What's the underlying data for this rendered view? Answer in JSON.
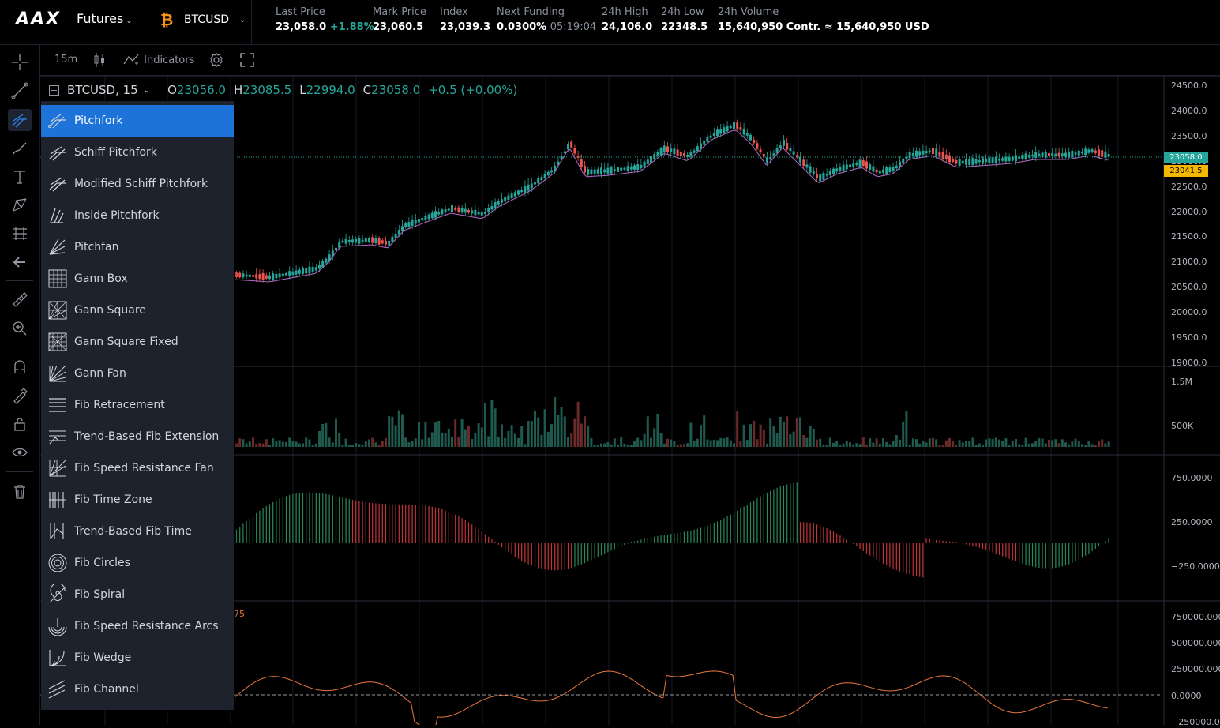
{
  "topbar": {
    "logo": "AAX",
    "product": "Futures",
    "symbol": "BTCUSD",
    "stats": [
      {
        "label": "Last Price",
        "value": "23,058.0",
        "extra": "+1.88%"
      },
      {
        "label": "Mark Price",
        "value": "23,060.5"
      },
      {
        "label": "Index",
        "value": "23,039.3"
      },
      {
        "label": "Next Funding",
        "value": "0.0300%",
        "extra": "05:19:04"
      },
      {
        "label": "24h High",
        "value": "24,106.0"
      },
      {
        "label": "24h Low",
        "value": "22348.5"
      },
      {
        "label": "24h Volume",
        "value": "15,640,950 Contr. ≈ 15,640,950 USD"
      }
    ]
  },
  "chart_toolbar": {
    "interval": "15m",
    "indicators_label": "Indicators"
  },
  "legend": {
    "title": "BTCUSD, 15",
    "o_label": "O",
    "o": "23056.0",
    "h_label": "H",
    "h": "23085.5",
    "l_label": "L",
    "l": "22994.0",
    "c_label": "C",
    "c": "23058.0",
    "change": "+0.5 (+0.00%)"
  },
  "menu": {
    "items": [
      {
        "label": "Pitchfork",
        "icon": "pitchfork-icon",
        "active": true
      },
      {
        "label": "Schiff Pitchfork",
        "icon": "schiff-pitchfork-icon"
      },
      {
        "label": "Modified Schiff Pitchfork",
        "icon": "modified-schiff-pitchfork-icon"
      },
      {
        "label": "Inside Pitchfork",
        "icon": "inside-pitchfork-icon"
      },
      {
        "label": "Pitchfan",
        "icon": "pitchfan-icon"
      },
      {
        "label": "Gann Box",
        "icon": "gann-box-icon"
      },
      {
        "label": "Gann Square",
        "icon": "gann-square-icon"
      },
      {
        "label": "Gann Square Fixed",
        "icon": "gann-square-fixed-icon"
      },
      {
        "label": "Gann Fan",
        "icon": "gann-fan-icon"
      },
      {
        "label": "Fib Retracement",
        "icon": "fib-retracement-icon"
      },
      {
        "label": "Trend-Based Fib Extension",
        "icon": "fib-extension-icon"
      },
      {
        "label": "Fib Speed Resistance Fan",
        "icon": "fib-speed-fan-icon"
      },
      {
        "label": "Fib Time Zone",
        "icon": "fib-time-zone-icon"
      },
      {
        "label": "Trend-Based Fib Time",
        "icon": "fib-time-icon"
      },
      {
        "label": "Fib Circles",
        "icon": "fib-circles-icon"
      },
      {
        "label": "Fib Spiral",
        "icon": "fib-spiral-icon"
      },
      {
        "label": "Fib Speed Resistance Arcs",
        "icon": "fib-arcs-icon"
      },
      {
        "label": "Fib Wedge",
        "icon": "fib-wedge-icon"
      },
      {
        "label": "Fib Channel",
        "icon": "fib-channel-icon"
      }
    ]
  },
  "price_axis": [
    "24500.0",
    "24000.0",
    "23500.0",
    "23000.0",
    "22500.0",
    "22000.0",
    "21500.0",
    "21000.0",
    "20500.0",
    "20000.0",
    "19500.0",
    "19000.0"
  ],
  "last_price_tag": "23058.0",
  "ma_price_tag": "23041.5",
  "volume_axis": [
    "1.5M",
    "500K"
  ],
  "macd_axis": [
    "750.0000",
    "250.0000",
    "−250.0000"
  ],
  "osc_axis": [
    "750000.0000",
    "500000.0000",
    "250000.0000",
    "0.0000",
    "−250000.0000"
  ],
  "osc_label": "75",
  "colors": {
    "up": "#26a69a",
    "down": "#ef5350",
    "accent": "#1e73d8",
    "ma": "#b36bc7",
    "osc": "#e8773c"
  }
}
